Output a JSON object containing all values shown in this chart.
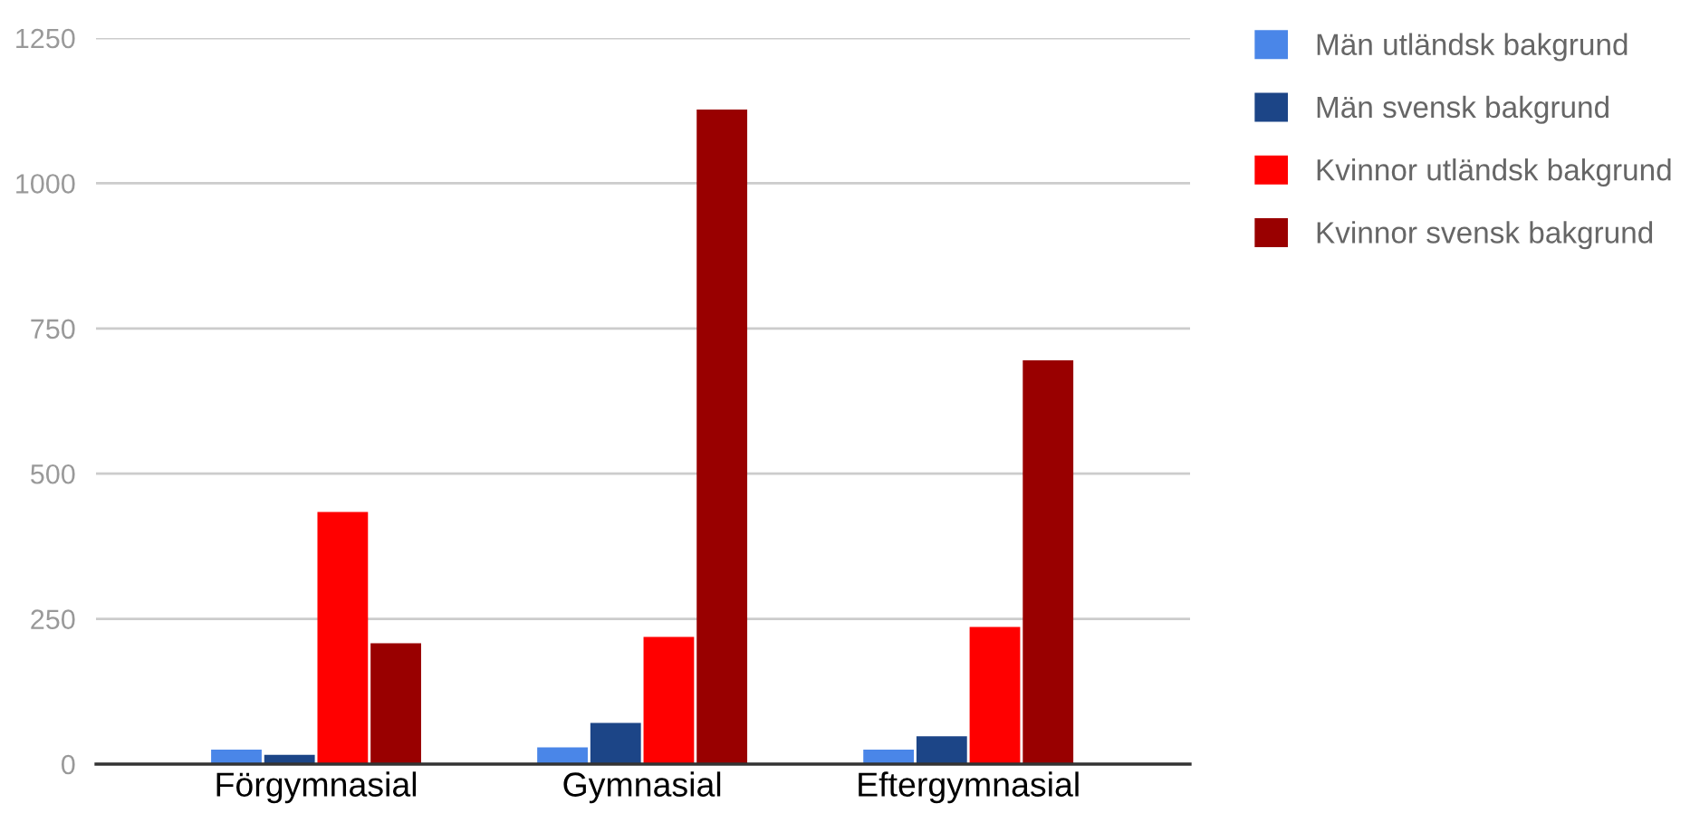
{
  "chart_data": {
    "type": "bar",
    "categories": [
      "Förgymnasial",
      "Gymnasial",
      "Eftergymnasial"
    ],
    "series": [
      {
        "name": "Män utländsk bakgrund",
        "color": "#4a86e8",
        "values": [
          25,
          29,
          25
        ]
      },
      {
        "name": "Män svensk bakgrund",
        "color": "#1c4587",
        "values": [
          16,
          71,
          48
        ]
      },
      {
        "name": "Kvinnor utländsk bakgrund",
        "color": "#ff0000",
        "values": [
          434,
          219,
          236
        ]
      },
      {
        "name": "Kvinnor svensk bakgrund",
        "color": "#990000",
        "values": [
          208,
          1127,
          695
        ]
      }
    ],
    "ylim": [
      0,
      1250
    ],
    "yticks": [
      0,
      250,
      500,
      750,
      1000,
      1250
    ],
    "grid": "y",
    "legend": "top right"
  }
}
